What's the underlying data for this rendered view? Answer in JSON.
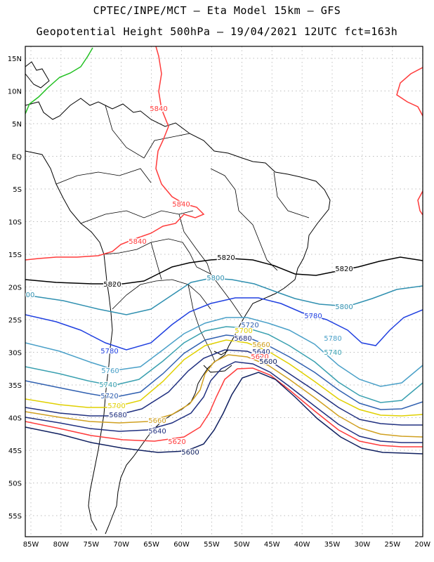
{
  "header": {
    "line1": "CPTEC/INPE/MCT –  Eta Model 15km – GFS",
    "line2": "Geopotential Height 500hPa – 19/04/2021 12UTC fct=163h"
  },
  "map": {
    "lat_labels": [
      "15N",
      "10N",
      "5N",
      "EQ",
      "5S",
      "10S",
      "15S",
      "20S",
      "25S",
      "30S",
      "35S",
      "40S",
      "45S",
      "50S",
      "55S"
    ],
    "lon_labels": [
      "85W",
      "80W",
      "75W",
      "70W",
      "65W",
      "60W",
      "55W",
      "50W",
      "45W",
      "40W",
      "35W",
      "30W",
      "25W",
      "20W"
    ],
    "contour_labels": [
      {
        "text": "5840",
        "color": "#ff3b3b"
      },
      {
        "text": "5840",
        "color": "#ff3b3b"
      },
      {
        "text": "5840",
        "color": "#ff3b3b"
      },
      {
        "text": "5820",
        "color": "#000000"
      },
      {
        "text": "5820",
        "color": "#000000"
      },
      {
        "text": "5820",
        "color": "#000000"
      },
      {
        "text": "5800",
        "color": "#3090b0"
      },
      {
        "text": "5800",
        "color": "#3090b0"
      },
      {
        "text": "5780",
        "color": "#2040e0"
      },
      {
        "text": "5780",
        "color": "#2040e0"
      },
      {
        "text": "5780",
        "color": "#4aa0c8"
      },
      {
        "text": "5760",
        "color": "#4aa0c8"
      },
      {
        "text": "5760",
        "color": "#4aa0c8"
      },
      {
        "text": "5740",
        "color": "#3aa0b0"
      },
      {
        "text": "5740",
        "color": "#3aa0b0"
      },
      {
        "text": "5720",
        "color": "#3060b0"
      },
      {
        "text": "5720",
        "color": "#3060b0"
      },
      {
        "text": "5700",
        "color": "#e0d000"
      },
      {
        "text": "5700",
        "color": "#e0d000"
      },
      {
        "text": "5680",
        "color": "#203080"
      },
      {
        "text": "5680",
        "color": "#203080"
      },
      {
        "text": "5660",
        "color": "#d0a020"
      },
      {
        "text": "5660",
        "color": "#d0a020"
      },
      {
        "text": "5640",
        "color": "#203080"
      },
      {
        "text": "5640",
        "color": "#203080"
      },
      {
        "text": "5620",
        "color": "#ff3b3b"
      },
      {
        "text": "5620",
        "color": "#ff3b3b"
      },
      {
        "text": "5600",
        "color": "#102060"
      },
      {
        "text": "5600",
        "color": "#102060"
      },
      {
        "text": "00",
        "color": "#3090b0"
      }
    ]
  }
}
